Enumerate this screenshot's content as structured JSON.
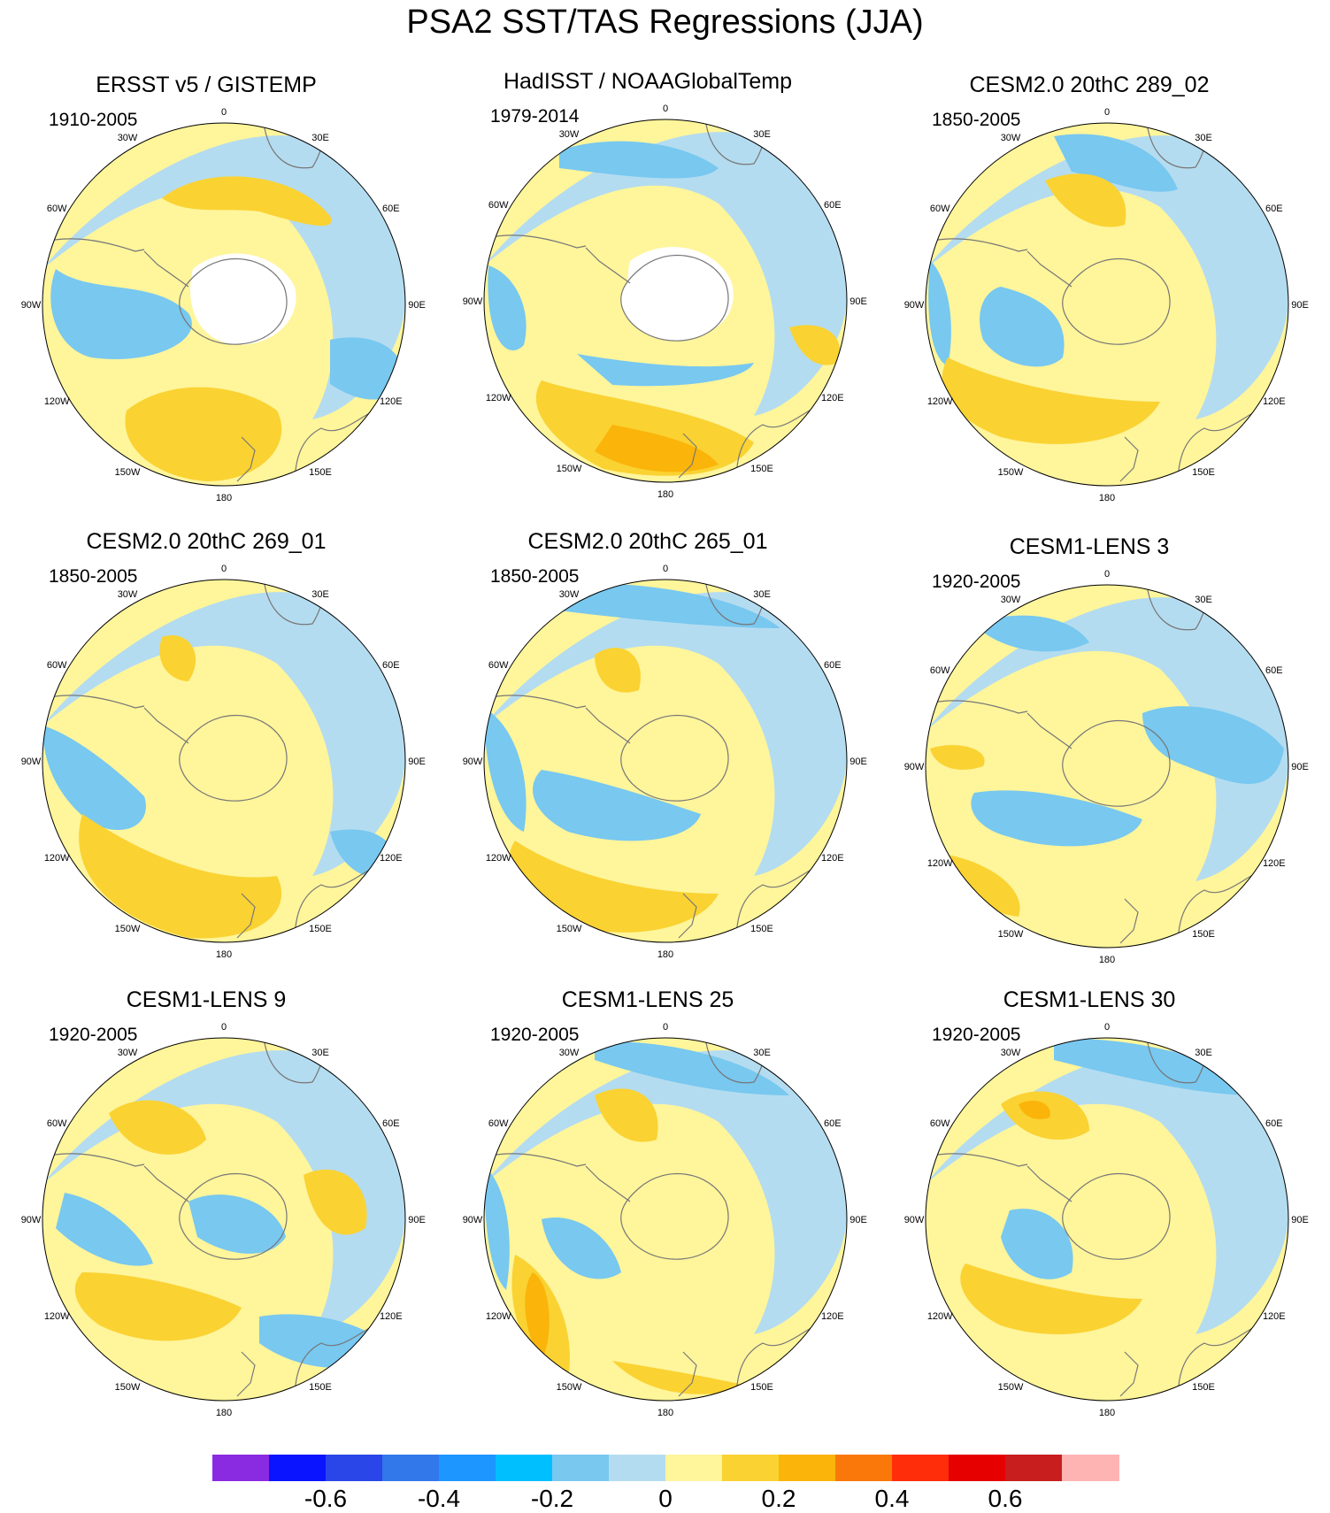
{
  "title": "PSA2 SST/TAS Regressions (JJA)",
  "lon_labels": [
    "0",
    "30E",
    "60E",
    "90E",
    "120E",
    "150E",
    "180",
    "150W",
    "120W",
    "90W",
    "60W",
    "30W"
  ],
  "panels": [
    {
      "title": "ERSST v5 / GISTEMP",
      "period": "1910-2005"
    },
    {
      "title": "HadISST / NOAAGlobalTemp",
      "period": "1979-2014"
    },
    {
      "title": "CESM2.0 20thC 289_02",
      "period": "1850-2005"
    },
    {
      "title": "CESM2.0 20thC 269_01",
      "period": "1850-2005"
    },
    {
      "title": "CESM2.0 20thC 265_01",
      "period": "1850-2005"
    },
    {
      "title": "CESM1-LENS 3",
      "period": "1920-2005"
    },
    {
      "title": "CESM1-LENS 9",
      "period": "1920-2005"
    },
    {
      "title": "CESM1-LENS 25",
      "period": "1920-2005"
    },
    {
      "title": "CESM1-LENS 30",
      "period": "1920-2005"
    }
  ],
  "colorbar": {
    "colors": [
      "#8a2be2",
      "#0a14ff",
      "#2a46e8",
      "#3278ea",
      "#1e96ff",
      "#00bfff",
      "#78c8f0",
      "#b4dcf0",
      "#fff59b",
      "#fad232",
      "#fab40a",
      "#fa780a",
      "#ff2d0a",
      "#e60000",
      "#c81e1e",
      "#ffb4b4"
    ],
    "labels": [
      "-0.6",
      "-0.4",
      "-0.2",
      "0",
      "0.2",
      "0.4",
      "0.6"
    ]
  },
  "colors": {
    "land": "#ffffff",
    "coast": "#777777",
    "neutral_pos": "#fff59b",
    "neutral_neg": "#b4dcf0",
    "mod_neg": "#78c8f0",
    "pos2": "#fad232",
    "pos3": "#fab40a"
  }
}
